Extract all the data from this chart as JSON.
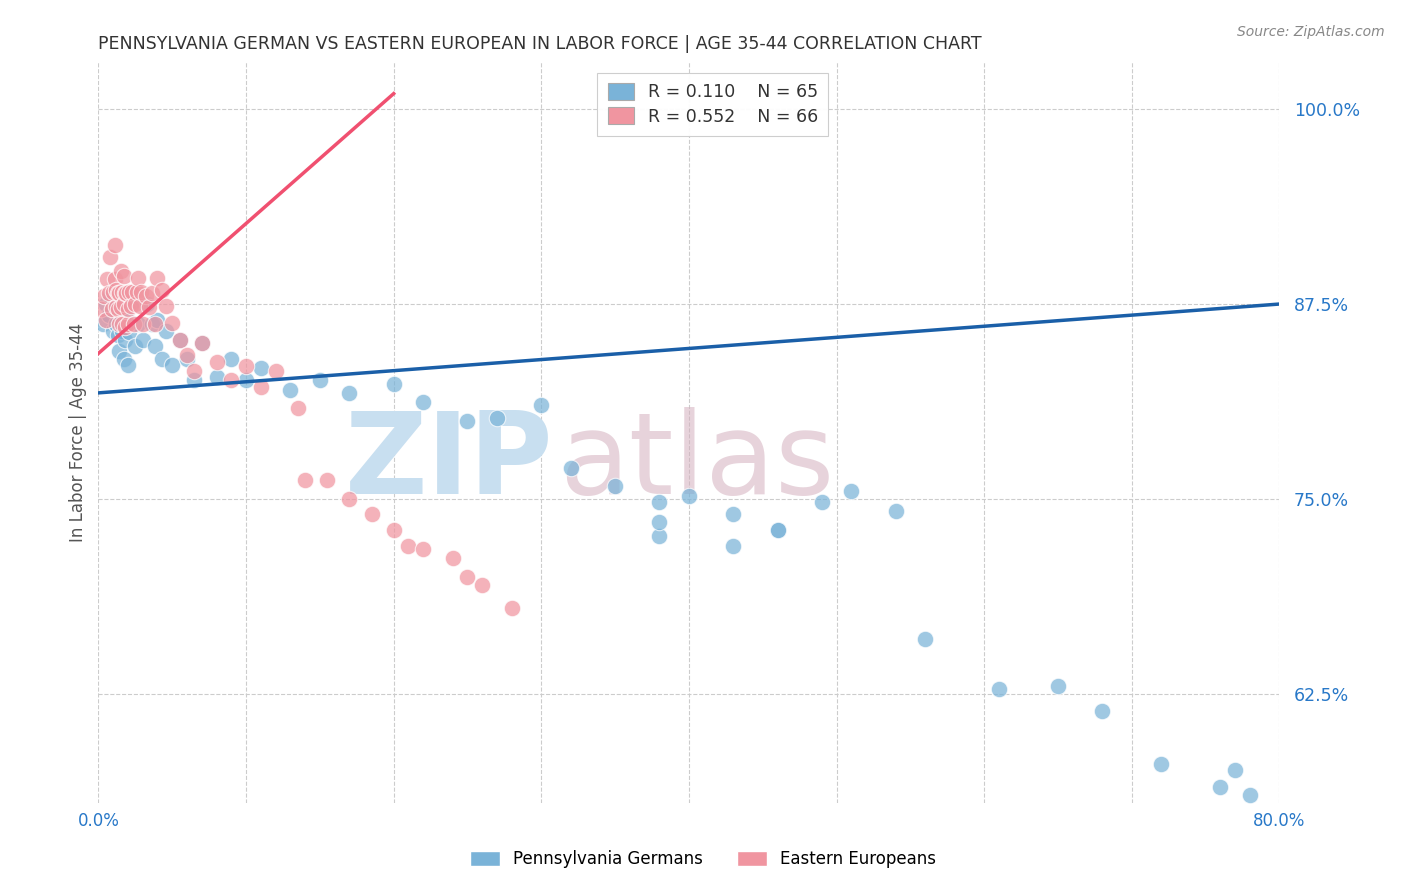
{
  "title": "PENNSYLVANIA GERMAN VS EASTERN EUROPEAN IN LABOR FORCE | AGE 35-44 CORRELATION CHART",
  "source": "Source: ZipAtlas.com",
  "ylabel": "In Labor Force | Age 35-44",
  "blue_R": 0.11,
  "blue_N": 65,
  "pink_R": 0.552,
  "pink_N": 66,
  "blue_color": "#7ab3d8",
  "pink_color": "#f095a0",
  "blue_line_color": "#1a5fa8",
  "pink_line_color": "#f05070",
  "legend_blue_label": "Pennsylvania Germans",
  "legend_pink_label": "Eastern Europeans",
  "background_color": "#ffffff",
  "watermark_zip_color": "#c8dff0",
  "watermark_atlas_color": "#d4b0be",
  "xlim": [
    0.0,
    0.8
  ],
  "ylim": [
    0.555,
    1.03
  ],
  "y_tick_positions": [
    0.625,
    0.75,
    0.875,
    1.0
  ],
  "y_tick_labels": [
    "62.5%",
    "75.0%",
    "87.5%",
    "100.0%"
  ],
  "blue_trendline_x": [
    0.0,
    0.8
  ],
  "blue_trendline_y": [
    0.818,
    0.875
  ],
  "pink_trendline_x": [
    -0.01,
    0.2
  ],
  "pink_trendline_y": [
    0.835,
    1.01
  ],
  "blue_points_x": [
    0.003,
    0.005,
    0.007,
    0.008,
    0.009,
    0.01,
    0.011,
    0.012,
    0.013,
    0.014,
    0.015,
    0.016,
    0.017,
    0.018,
    0.019,
    0.02,
    0.021,
    0.023,
    0.025,
    0.027,
    0.03,
    0.033,
    0.036,
    0.038,
    0.04,
    0.043,
    0.046,
    0.05,
    0.055,
    0.06,
    0.065,
    0.07,
    0.08,
    0.09,
    0.1,
    0.11,
    0.13,
    0.15,
    0.17,
    0.2,
    0.22,
    0.25,
    0.27,
    0.3,
    0.32,
    0.35,
    0.38,
    0.4,
    0.43,
    0.46,
    0.49,
    0.51,
    0.54,
    0.38,
    0.43,
    0.46,
    0.56,
    0.38,
    0.61,
    0.65,
    0.68,
    0.72,
    0.76,
    0.77,
    0.78
  ],
  "blue_points_y": [
    0.862,
    0.875,
    0.868,
    0.88,
    0.872,
    0.858,
    0.875,
    0.862,
    0.855,
    0.845,
    0.872,
    0.858,
    0.84,
    0.852,
    0.868,
    0.836,
    0.857,
    0.876,
    0.848,
    0.862,
    0.852,
    0.875,
    0.862,
    0.848,
    0.865,
    0.84,
    0.858,
    0.836,
    0.852,
    0.84,
    0.826,
    0.85,
    0.828,
    0.84,
    0.826,
    0.834,
    0.82,
    0.826,
    0.818,
    0.824,
    0.812,
    0.8,
    0.802,
    0.81,
    0.77,
    0.758,
    0.748,
    0.752,
    0.74,
    0.73,
    0.748,
    0.755,
    0.742,
    0.726,
    0.72,
    0.73,
    0.66,
    0.735,
    0.628,
    0.63,
    0.614,
    0.58,
    0.565,
    0.576,
    0.56
  ],
  "pink_points_x": [
    0.002,
    0.004,
    0.005,
    0.006,
    0.007,
    0.008,
    0.009,
    0.01,
    0.011,
    0.011,
    0.012,
    0.012,
    0.013,
    0.013,
    0.014,
    0.014,
    0.015,
    0.015,
    0.016,
    0.016,
    0.017,
    0.017,
    0.018,
    0.018,
    0.019,
    0.02,
    0.02,
    0.021,
    0.022,
    0.023,
    0.024,
    0.025,
    0.026,
    0.027,
    0.028,
    0.029,
    0.03,
    0.032,
    0.034,
    0.036,
    0.038,
    0.04,
    0.043,
    0.046,
    0.05,
    0.055,
    0.06,
    0.065,
    0.07,
    0.08,
    0.09,
    0.1,
    0.11,
    0.12,
    0.135,
    0.14,
    0.155,
    0.17,
    0.185,
    0.2,
    0.21,
    0.22,
    0.24,
    0.25,
    0.26,
    0.28
  ],
  "pink_points_y": [
    0.872,
    0.88,
    0.865,
    0.891,
    0.882,
    0.905,
    0.872,
    0.883,
    0.913,
    0.891,
    0.873,
    0.884,
    0.882,
    0.872,
    0.862,
    0.882,
    0.873,
    0.896,
    0.883,
    0.862,
    0.893,
    0.875,
    0.882,
    0.86,
    0.882,
    0.862,
    0.872,
    0.883,
    0.874,
    0.883,
    0.862,
    0.875,
    0.883,
    0.892,
    0.874,
    0.883,
    0.862,
    0.88,
    0.873,
    0.882,
    0.862,
    0.892,
    0.884,
    0.874,
    0.863,
    0.852,
    0.842,
    0.832,
    0.85,
    0.838,
    0.826,
    0.835,
    0.822,
    0.832,
    0.808,
    0.762,
    0.762,
    0.75,
    0.74,
    0.73,
    0.72,
    0.718,
    0.712,
    0.7,
    0.695,
    0.68
  ]
}
